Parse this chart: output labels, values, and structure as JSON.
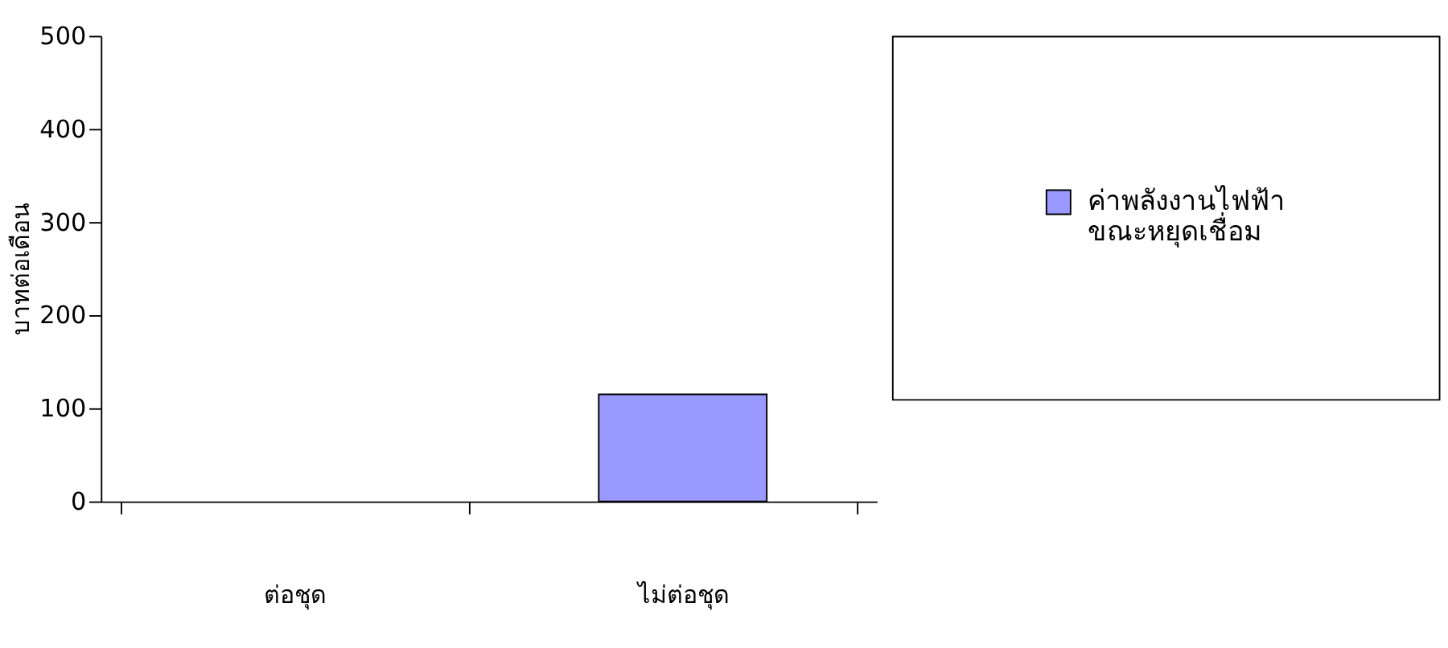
{
  "chart_data": {
    "type": "bar",
    "ylabel": "บาทต่อเดือน",
    "categories": [
      "ต่อชุด",
      "ไม่ต่อชุด"
    ],
    "series": [
      {
        "name": "ค่าพลังงานไฟฟ้า\nขณะหยุดเชื่อม",
        "color": "#9999ff",
        "values": [
          null,
          115
        ]
      }
    ],
    "ylim": [
      0,
      500
    ],
    "yticks": [
      0,
      100,
      200,
      300,
      400,
      500
    ],
    "grid": false,
    "legend": "right"
  }
}
